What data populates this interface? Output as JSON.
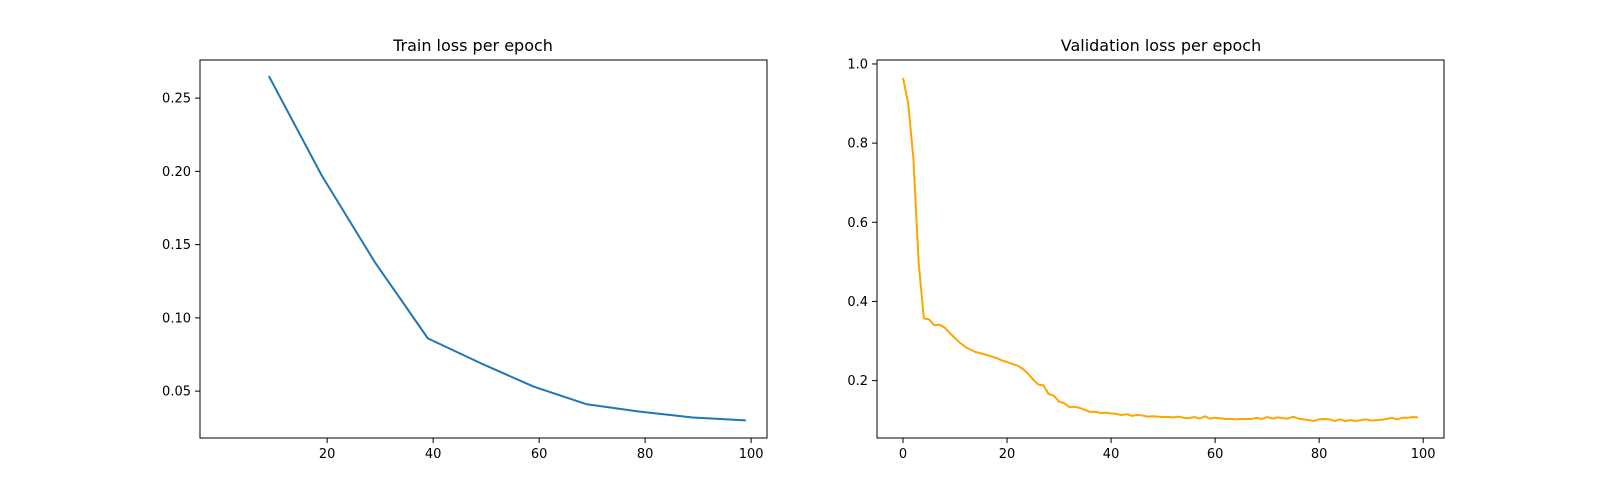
{
  "chart_data": [
    {
      "type": "line",
      "title": "Train loss per epoch",
      "xlabel": "",
      "ylabel": "",
      "xlim": [
        -4,
        103
      ],
      "ylim": [
        0.018,
        0.276
      ],
      "xticks": [
        20,
        40,
        60,
        80,
        100
      ],
      "yticks": [
        0.05,
        0.1,
        0.15,
        0.2,
        0.25
      ],
      "xtick_labels": [
        "20",
        "40",
        "60",
        "80",
        "100"
      ],
      "ytick_labels": [
        "0.05",
        "0.10",
        "0.15",
        "0.20",
        "0.25"
      ],
      "grid": false,
      "color": "#1f77b4",
      "series": [
        {
          "x": [
            9,
            19,
            29,
            39,
            49,
            59,
            69,
            79,
            89,
            99
          ],
          "values": [
            0.265,
            0.197,
            0.138,
            0.086,
            0.069,
            0.053,
            0.041,
            0.036,
            0.032,
            0.03
          ]
        }
      ]
    },
    {
      "type": "line",
      "title": "Validation loss per epoch",
      "xlabel": "",
      "ylabel": "",
      "xlim": [
        -5,
        104
      ],
      "ylim": [
        0.055,
        1.01
      ],
      "xticks": [
        0,
        20,
        40,
        60,
        80,
        100
      ],
      "yticks": [
        0.2,
        0.4,
        0.6,
        0.8,
        1.0
      ],
      "xtick_labels": [
        "0",
        "20",
        "40",
        "60",
        "80",
        "100"
      ],
      "ytick_labels": [
        "0.2",
        "0.4",
        "0.6",
        "0.8",
        "1.0"
      ],
      "grid": false,
      "color": "#ffa500",
      "series": [
        {
          "x": [
            0,
            1,
            2,
            3,
            4,
            5,
            6,
            7,
            8,
            9,
            10,
            11,
            12,
            13,
            14,
            15,
            16,
            17,
            18,
            19,
            20,
            21,
            22,
            23,
            24,
            25,
            26,
            27,
            28,
            29,
            30,
            31,
            32,
            33,
            34,
            35,
            36,
            37,
            38,
            39,
            40,
            41,
            42,
            43,
            44,
            45,
            46,
            47,
            48,
            49,
            50,
            51,
            52,
            53,
            54,
            55,
            56,
            57,
            58,
            59,
            60,
            61,
            62,
            63,
            64,
            65,
            66,
            67,
            68,
            69,
            70,
            71,
            72,
            73,
            74,
            75,
            76,
            77,
            78,
            79,
            80,
            81,
            82,
            83,
            84,
            85,
            86,
            87,
            88,
            89,
            90,
            91,
            92,
            93,
            94,
            95,
            96,
            97,
            98,
            99
          ],
          "values": [
            0.965,
            0.9,
            0.76,
            0.5,
            0.357,
            0.355,
            0.34,
            0.341,
            0.334,
            0.32,
            0.307,
            0.295,
            0.285,
            0.278,
            0.272,
            0.269,
            0.265,
            0.261,
            0.257,
            0.251,
            0.247,
            0.242,
            0.238,
            0.23,
            0.218,
            0.203,
            0.19,
            0.188,
            0.166,
            0.162,
            0.147,
            0.143,
            0.133,
            0.134,
            0.131,
            0.126,
            0.121,
            0.121,
            0.118,
            0.119,
            0.117,
            0.116,
            0.113,
            0.115,
            0.111,
            0.113,
            0.112,
            0.109,
            0.11,
            0.109,
            0.108,
            0.108,
            0.107,
            0.109,
            0.106,
            0.105,
            0.108,
            0.104,
            0.11,
            0.104,
            0.106,
            0.105,
            0.103,
            0.103,
            0.102,
            0.103,
            0.103,
            0.103,
            0.106,
            0.103,
            0.108,
            0.104,
            0.107,
            0.105,
            0.104,
            0.109,
            0.104,
            0.102,
            0.1,
            0.098,
            0.102,
            0.103,
            0.102,
            0.098,
            0.102,
            0.098,
            0.1,
            0.098,
            0.1,
            0.102,
            0.099,
            0.1,
            0.101,
            0.103,
            0.106,
            0.102,
            0.106,
            0.106,
            0.108,
            0.107
          ]
        }
      ]
    }
  ]
}
